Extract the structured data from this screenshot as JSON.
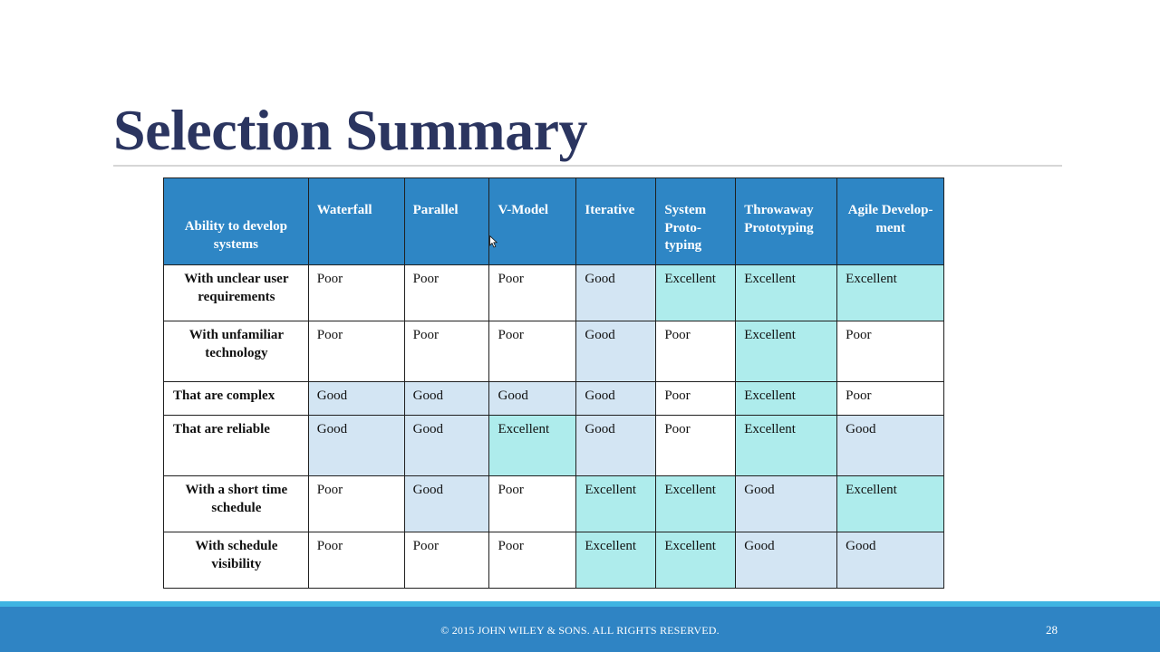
{
  "slide": {
    "title": "Selection Summary",
    "footer": "© 2015 JOHN WILEY & SONS.  ALL RIGHTS RESERVED.",
    "page_number": "28"
  },
  "table": {
    "corner_header": "Ability to develop systems",
    "columns": [
      "Waterfall",
      "Parallel",
      "V-Model",
      "Iterative",
      "System Proto-typing",
      "Throwaway Prototyping",
      "Agile Develop-ment"
    ],
    "rows": [
      {
        "label": "With unclear user requirements",
        "values": [
          "Poor",
          "Poor",
          "Poor",
          "Good",
          "Excellent",
          "Excellent",
          "Excellent"
        ]
      },
      {
        "label": "With unfamiliar technology",
        "values": [
          "Poor",
          "Poor",
          "Poor",
          "Good",
          "Poor",
          "Excellent",
          "Poor"
        ]
      },
      {
        "label": "That are complex",
        "values": [
          "Good",
          "Good",
          "Good",
          "Good",
          "Poor",
          "Excellent",
          "Poor"
        ]
      },
      {
        "label": "That are reliable",
        "values": [
          "Good",
          "Good",
          "Excellent",
          "Good",
          "Poor",
          "Excellent",
          "Good"
        ]
      },
      {
        "label": "With a short time schedule",
        "values": [
          "Poor",
          "Good",
          "Poor",
          "Excellent",
          "Excellent",
          "Good",
          "Excellent"
        ]
      },
      {
        "label": "With schedule visibility",
        "values": [
          "Poor",
          "Poor",
          "Poor",
          "Excellent",
          "Excellent",
          "Good",
          "Good"
        ]
      }
    ]
  },
  "colors": {
    "header_blue": "#2e86c5",
    "good_cell": "#d3e5f3",
    "excellent_cell": "#aeecec",
    "poor_cell": "#ffffff",
    "title_text": "#2b3560",
    "footer_bar": "#2f84c4",
    "footer_accent": "#3fb4e2"
  }
}
